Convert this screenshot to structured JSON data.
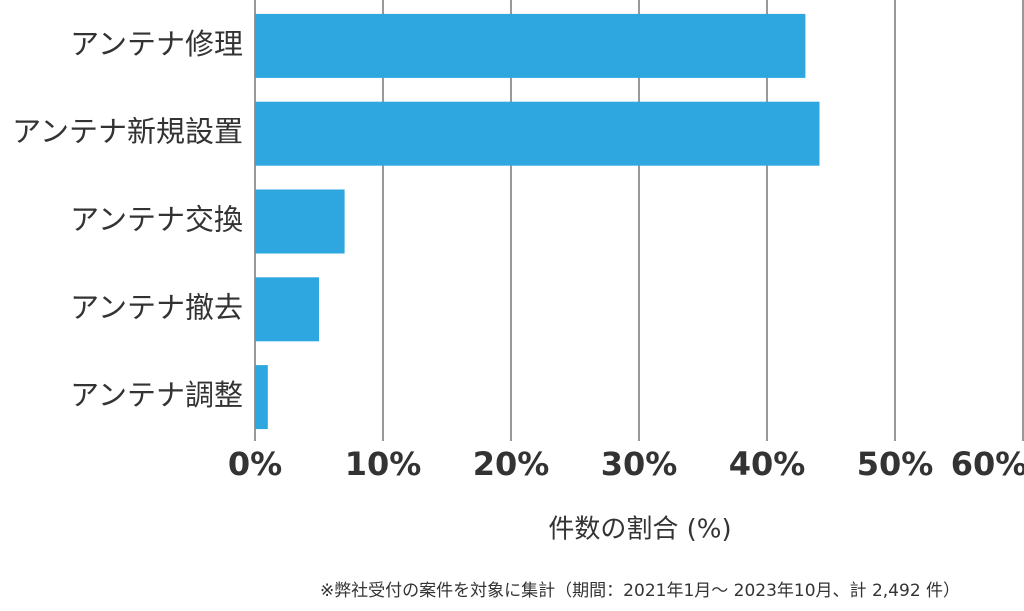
{
  "chart_data": {
    "type": "bar",
    "orientation": "horizontal",
    "categories": [
      "アンテナ修理",
      "アンテナ新規設置",
      "アンテナ交換",
      "アンテナ撤去",
      "アンテナ調整"
    ],
    "values": [
      43.0,
      44.1,
      7.0,
      5.0,
      1.0
    ],
    "color": "#2ea7e0",
    "xlim": [
      0,
      60
    ],
    "xticks": [
      {
        "value": 0,
        "label": "0%"
      },
      {
        "value": 10,
        "label": "10%"
      },
      {
        "value": 20,
        "label": "20%"
      },
      {
        "value": 30,
        "label": "30%"
      },
      {
        "value": 40,
        "label": "40%"
      },
      {
        "value": 50,
        "label": "50%"
      },
      {
        "value": 60,
        "label": "60%"
      }
    ],
    "grid": true,
    "x_label": "件数の割合 (%)",
    "footnote": "※弊社受付の案件を対象に集計（期間：2021年1月～ 2023年10月、計 2,492 件）"
  }
}
